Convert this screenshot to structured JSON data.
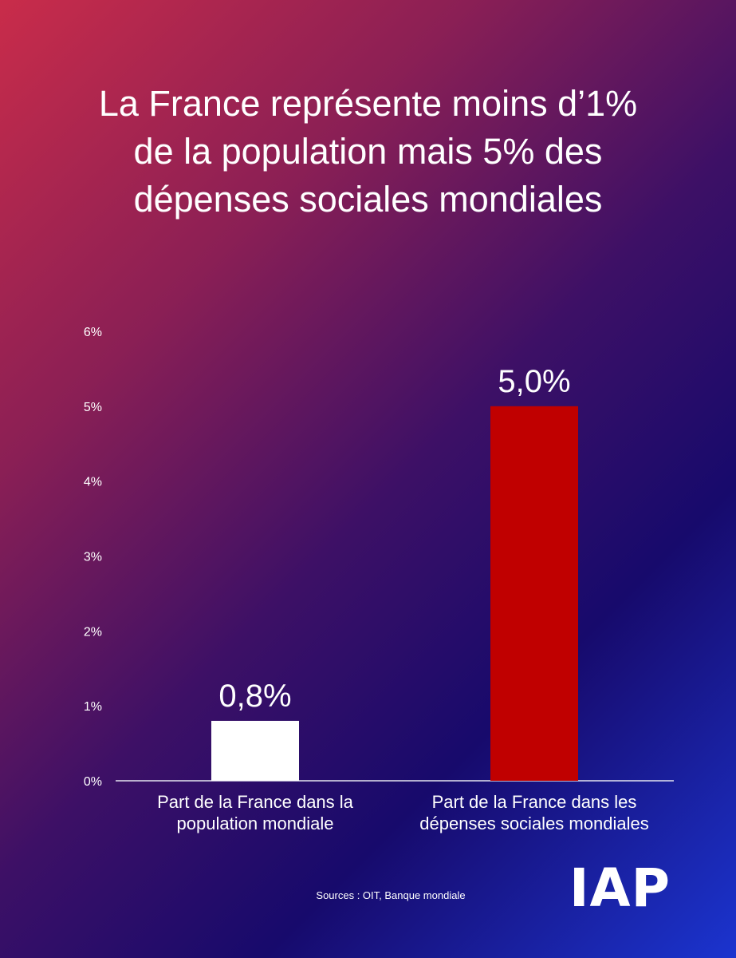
{
  "header": {
    "title_lines": [
      "La France représente moins d’1%",
      "de la population mais 5% des",
      "dépenses sociales mondiales"
    ]
  },
  "chart_data": {
    "type": "bar",
    "categories": [
      [
        "Part de la France dans la",
        "population mondiale"
      ],
      [
        "Part de la France dans les",
        "dépenses sociales mondiales"
      ]
    ],
    "values": [
      0.8,
      5.0
    ],
    "data_labels": [
      "0,8%",
      "5,0%"
    ],
    "bar_colors": [
      "#ffffff",
      "#c00000"
    ],
    "yticks": [
      0,
      1,
      2,
      3,
      4,
      5,
      6
    ],
    "ytick_labels": [
      "0%",
      "1%",
      "2%",
      "3%",
      "4%",
      "5%",
      "6%"
    ],
    "ylim": [
      0,
      6
    ],
    "grid": false,
    "legend": "none"
  },
  "footer": {
    "source": "Sources : OIT, Banque mondiale",
    "logo": "IAP"
  }
}
